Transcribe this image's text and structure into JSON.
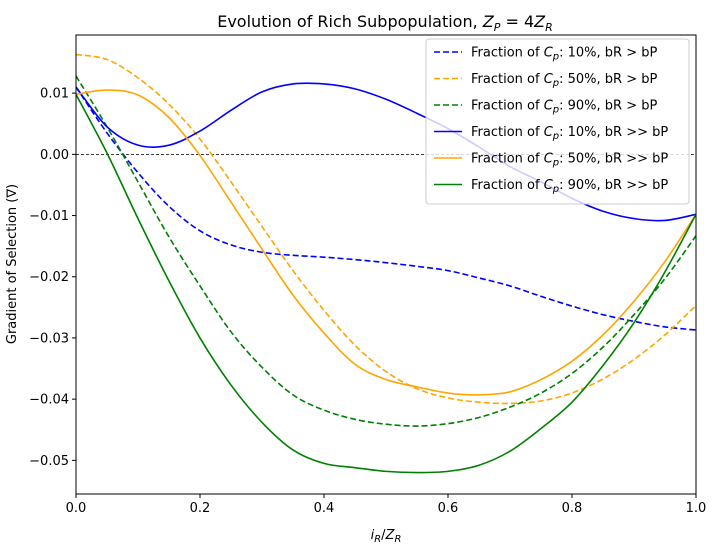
{
  "chart_data": {
    "type": "line",
    "title": "Evolution of Rich Subpopulation, Z_P = 4Z_R",
    "title_parts": {
      "prefix": "Evolution of Rich Subpopulation, ",
      "z1": "Z",
      "s1": "P",
      "eq": " = 4",
      "z2": "Z",
      "s2": "R"
    },
    "xlabel": "i_R/Z_R",
    "xlabel_parts": {
      "a": "i",
      "as": "R",
      "slash": "/",
      "b": "Z",
      "bs": "R"
    },
    "ylabel": "Gradient of Selection (∇)",
    "xlim": [
      0.0,
      1.0
    ],
    "ylim": [
      -0.0555,
      0.0195
    ],
    "xticks": [
      0.0,
      0.2,
      0.4,
      0.6,
      0.8,
      1.0
    ],
    "xtick_labels": [
      "0.0",
      "0.2",
      "0.4",
      "0.6",
      "0.8",
      "1.0"
    ],
    "yticks": [
      0.01,
      0.0,
      -0.01,
      -0.02,
      -0.03,
      -0.04,
      -0.05
    ],
    "ytick_labels": [
      "0.01",
      "0.00",
      "−0.01",
      "−0.02",
      "−0.03",
      "−0.04",
      "−0.05"
    ],
    "reference_line_y": 0.0,
    "grid": false,
    "legend_position": "upper right",
    "x": [
      0.0,
      0.05,
      0.1,
      0.15,
      0.2,
      0.25,
      0.3,
      0.35,
      0.4,
      0.45,
      0.5,
      0.55,
      0.6,
      0.65,
      0.7,
      0.75,
      0.8,
      0.85,
      0.9,
      0.95,
      1.0
    ],
    "series": [
      {
        "name": "Fraction of C_p: 10%, bR > bP",
        "label_parts": {
          "pre": "Fraction of ",
          "c": "C",
          "sub": "p",
          "post": ": 10%, bR > bP"
        },
        "color": "#0000ff",
        "dash": "dashed",
        "values": [
          0.011,
          0.0035,
          -0.003,
          -0.0085,
          -0.0125,
          -0.0148,
          -0.016,
          -0.0165,
          -0.0168,
          -0.0172,
          -0.0177,
          -0.0183,
          -0.019,
          -0.0202,
          -0.0215,
          -0.0232,
          -0.0248,
          -0.0262,
          -0.0273,
          -0.0282,
          -0.0287
        ]
      },
      {
        "name": "Fraction of C_p: 50%, bR > bP",
        "label_parts": {
          "pre": "Fraction of ",
          "c": "C",
          "sub": "p",
          "post": ": 50%, bR > bP"
        },
        "color": "#ffa500",
        "dash": "dashed",
        "values": [
          0.0163,
          0.0155,
          0.0125,
          0.0082,
          0.0025,
          -0.0045,
          -0.0118,
          -0.019,
          -0.0255,
          -0.0312,
          -0.0355,
          -0.0383,
          -0.0398,
          -0.0405,
          -0.0407,
          -0.0403,
          -0.039,
          -0.0367,
          -0.0335,
          -0.0295,
          -0.0247
        ]
      },
      {
        "name": "Fraction of C_p: 90%, bR > bP",
        "label_parts": {
          "pre": "Fraction of ",
          "c": "C",
          "sub": "p",
          "post": ": 90%, bR > bP"
        },
        "color": "#008000",
        "dash": "dashed",
        "values": [
          0.0128,
          0.0045,
          -0.0045,
          -0.0135,
          -0.0215,
          -0.029,
          -0.0348,
          -0.0393,
          -0.0418,
          -0.0433,
          -0.0441,
          -0.0444,
          -0.044,
          -0.043,
          -0.0413,
          -0.039,
          -0.0358,
          -0.0315,
          -0.0262,
          -0.0203,
          -0.0133
        ]
      },
      {
        "name": "Fraction of C_p: 10%, bR >> bP",
        "label_parts": {
          "pre": "Fraction of ",
          "c": "C",
          "sub": "p",
          "post": ": 10%, bR >> bP"
        },
        "color": "#0000ff",
        "dash": "solid",
        "values": [
          0.011,
          0.0045,
          0.0015,
          0.0015,
          0.0038,
          0.0072,
          0.0102,
          0.0115,
          0.0115,
          0.0107,
          0.009,
          0.0067,
          0.0042,
          0.0012,
          -0.002,
          -0.0045,
          -0.0072,
          -0.0093,
          -0.0105,
          -0.0108,
          -0.0098
        ]
      },
      {
        "name": "Fraction of C_p: 50%, bR >> bP",
        "label_parts": {
          "pre": "Fraction of ",
          "c": "C",
          "sub": "p",
          "post": ": 50%, bR >> bP"
        },
        "color": "#ffa500",
        "dash": "solid",
        "values": [
          0.0098,
          0.0105,
          0.0097,
          0.006,
          -0.0002,
          -0.0078,
          -0.0155,
          -0.023,
          -0.0292,
          -0.0343,
          -0.0368,
          -0.038,
          -0.039,
          -0.0393,
          -0.0388,
          -0.0368,
          -0.0338,
          -0.0295,
          -0.024,
          -0.0175,
          -0.0098
        ]
      },
      {
        "name": "Fraction of C_p: 90%, bR >> bP",
        "label_parts": {
          "pre": "Fraction of ",
          "c": "C",
          "sub": "p",
          "post": ": 90%, bR >> bP"
        },
        "color": "#008000",
        "dash": "solid",
        "values": [
          0.0098,
          0.0002,
          -0.0105,
          -0.0207,
          -0.03,
          -0.0377,
          -0.0438,
          -0.0483,
          -0.0505,
          -0.0512,
          -0.0518,
          -0.052,
          -0.0518,
          -0.0508,
          -0.0485,
          -0.0448,
          -0.0405,
          -0.0345,
          -0.0275,
          -0.0192,
          -0.0098
        ]
      }
    ]
  }
}
